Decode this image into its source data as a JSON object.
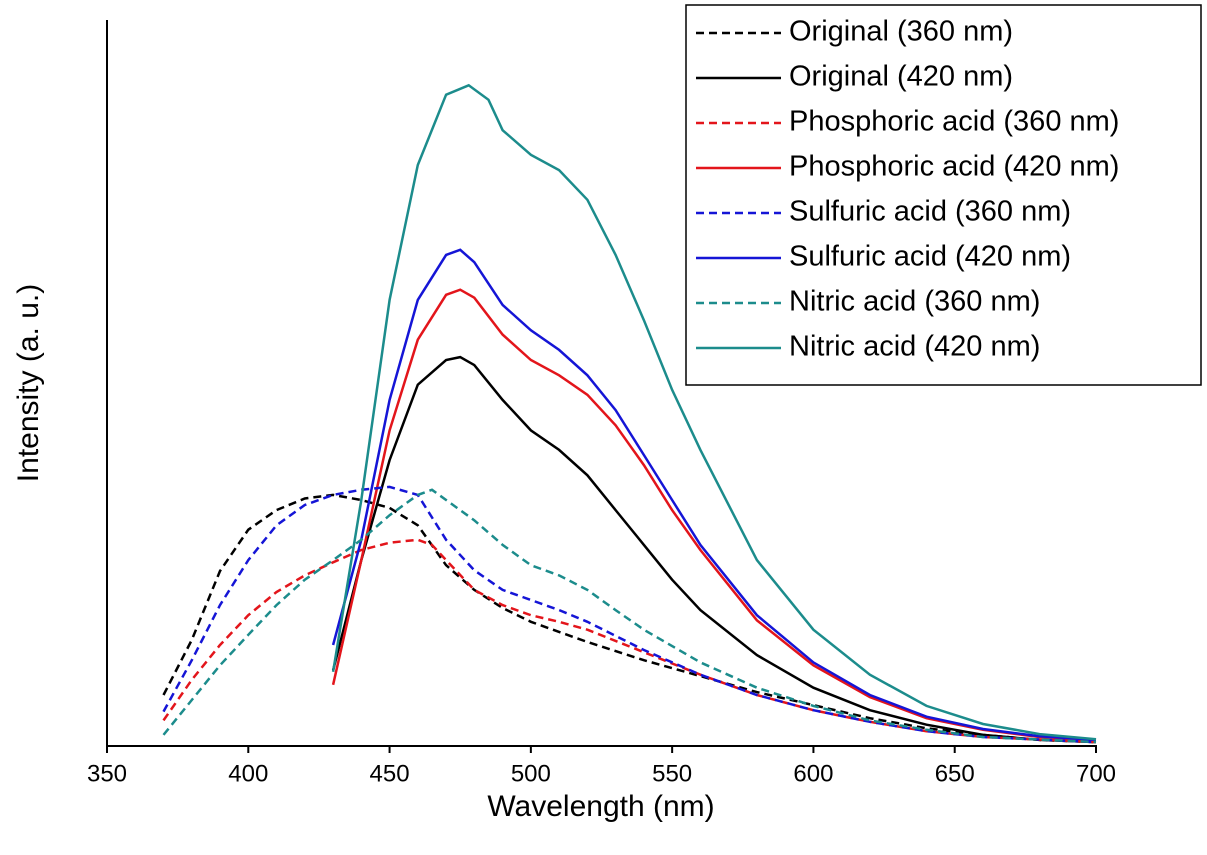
{
  "chart_data": {
    "type": "line",
    "xlabel": "Wavelength (nm)",
    "ylabel": "Intensity (a. u.)",
    "xlim": [
      350,
      700
    ],
    "xticks": [
      350,
      400,
      450,
      500,
      550,
      600,
      650,
      700
    ],
    "ylim": [
      0,
      100
    ],
    "legend": "top-right",
    "series": [
      {
        "name": "Original (360 nm)",
        "color": "#000000",
        "dashed": true,
        "x": [
          370,
          380,
          390,
          400,
          410,
          420,
          430,
          440,
          450,
          460,
          470,
          480,
          490,
          500,
          510,
          520,
          540,
          560,
          580,
          600,
          620,
          640,
          660,
          680,
          700
        ],
        "values": [
          6.9,
          14.5,
          24,
          29.7,
          32.4,
          34,
          34.5,
          33.8,
          32.7,
          30.3,
          24.8,
          21.4,
          18.9,
          17,
          15.6,
          14.2,
          11.7,
          9.5,
          7.3,
          5.5,
          3.7,
          2.3,
          1.4,
          0.7,
          0.4
        ]
      },
      {
        "name": "Original (420 nm)",
        "color": "#000000",
        "dashed": false,
        "x": [
          430,
          440,
          450,
          460,
          470,
          475,
          480,
          490,
          500,
          510,
          520,
          530,
          540,
          550,
          560,
          580,
          600,
          620,
          640,
          660,
          680,
          700
        ],
        "values": [
          10.3,
          25.5,
          39.3,
          49.7,
          53.1,
          53.5,
          52.4,
          47.6,
          43.4,
          40.7,
          37.2,
          32.4,
          27.6,
          22.8,
          18.6,
          12.4,
          7.9,
          4.8,
          2.8,
          1.4,
          0.7,
          0.4
        ]
      },
      {
        "name": "Phosphoric acid (360 nm)",
        "color": "#e3151b",
        "dashed": true,
        "x": [
          370,
          380,
          390,
          400,
          410,
          420,
          430,
          440,
          450,
          460,
          465,
          470,
          480,
          490,
          500,
          510,
          520,
          540,
          560,
          580,
          600,
          620,
          640,
          660,
          700
        ],
        "values": [
          3.4,
          9,
          13.8,
          17.9,
          21.1,
          23.4,
          25.2,
          26.9,
          27.9,
          28.3,
          27.6,
          25.5,
          21.4,
          19.3,
          17.9,
          17,
          15.9,
          12.8,
          9.7,
          6.9,
          4.8,
          3.2,
          1.9,
          1.1,
          0.4
        ]
      },
      {
        "name": "Phosphoric acid (420 nm)",
        "color": "#e3151b",
        "dashed": false,
        "x": [
          430,
          440,
          450,
          460,
          470,
          475,
          480,
          490,
          500,
          510,
          520,
          530,
          540,
          550,
          560,
          580,
          600,
          620,
          640,
          660,
          680,
          700
        ],
        "values": [
          8.3,
          25.5,
          43.4,
          55.9,
          62.1,
          62.8,
          61.7,
          56.6,
          53.1,
          51,
          48.3,
          44.1,
          38.6,
          32.4,
          26.9,
          17.2,
          11,
          6.6,
          3.7,
          2.1,
          1.1,
          0.7
        ]
      },
      {
        "name": "Sulfuric acid (360 nm)",
        "color": "#1515d6",
        "dashed": true,
        "x": [
          370,
          380,
          390,
          400,
          410,
          420,
          430,
          440,
          450,
          460,
          470,
          480,
          490,
          500,
          510,
          520,
          540,
          560,
          580,
          600,
          620,
          640,
          660,
          700
        ],
        "values": [
          4.6,
          11.7,
          19.3,
          25.5,
          30.3,
          33.1,
          34.5,
          35.2,
          35.6,
          34.5,
          28.3,
          24.1,
          21.4,
          20,
          18.6,
          17,
          13.1,
          9.7,
          6.9,
          4.8,
          3.2,
          1.9,
          1.1,
          0.4
        ]
      },
      {
        "name": "Sulfuric acid (420 nm)",
        "color": "#1515d6",
        "dashed": false,
        "x": [
          430,
          440,
          450,
          460,
          470,
          475,
          480,
          490,
          500,
          510,
          520,
          530,
          540,
          550,
          560,
          580,
          600,
          620,
          640,
          660,
          680,
          700
        ],
        "values": [
          13.8,
          28.3,
          47.6,
          61.4,
          67.6,
          68.3,
          66.6,
          60.7,
          57.2,
          54.5,
          51,
          46.2,
          40,
          33.8,
          27.6,
          17.9,
          11.4,
          6.9,
          3.9,
          2.2,
          1.2,
          0.7
        ]
      },
      {
        "name": "Nitric acid (360 nm)",
        "color": "#1c8c8c",
        "dashed": true,
        "x": [
          370,
          380,
          390,
          400,
          410,
          420,
          430,
          440,
          450,
          460,
          465,
          470,
          480,
          490,
          500,
          510,
          520,
          530,
          540,
          560,
          580,
          600,
          620,
          640,
          660,
          700
        ],
        "values": [
          1.4,
          6.2,
          11,
          15.2,
          19.3,
          22.8,
          25.5,
          28.3,
          31.7,
          34.5,
          35.2,
          33.8,
          31,
          27.6,
          24.8,
          23.4,
          21.4,
          18.6,
          15.9,
          11.4,
          7.9,
          5.4,
          3.4,
          2.1,
          1.1,
          0.4
        ]
      },
      {
        "name": "Nitric acid (420 nm)",
        "color": "#1c8c8c",
        "dashed": false,
        "x": [
          430,
          440,
          450,
          460,
          470,
          478,
          485,
          490,
          500,
          510,
          520,
          530,
          540,
          550,
          560,
          580,
          600,
          620,
          640,
          660,
          680,
          700
        ],
        "values": [
          10.1,
          33.8,
          61.4,
          80,
          89.7,
          91,
          89,
          84.8,
          81.4,
          79.3,
          75.2,
          67.6,
          58.6,
          49,
          40.7,
          25.5,
          15.9,
          9.7,
          5.4,
          2.9,
          1.5,
          0.8
        ]
      }
    ]
  }
}
